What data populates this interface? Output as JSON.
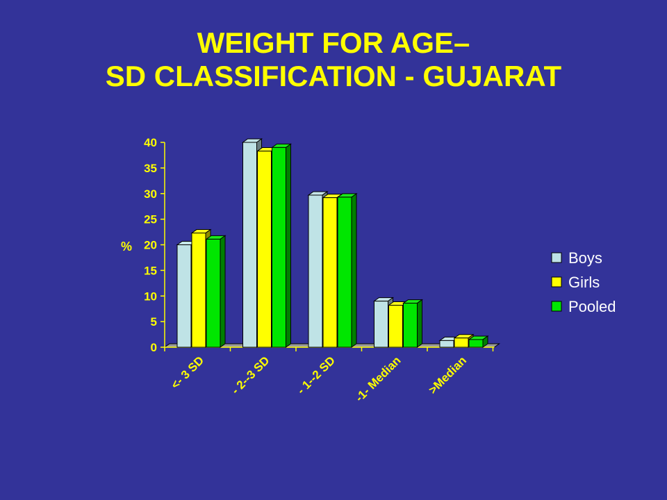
{
  "slide": {
    "title_line1": "WEIGHT FOR AGE–",
    "title_line2": "SD  CLASSIFICATION - GUJARAT"
  },
  "colors": {
    "background": "#333399",
    "title": "#ffff00",
    "Boys": "#bfe3e6",
    "Girls": "#ffff00",
    "Pooled": "#00e600"
  },
  "chart_data": {
    "type": "bar",
    "subtype": "3d-clustered",
    "ylabel": "%",
    "xlabel": "",
    "ylim": [
      0,
      40
    ],
    "yticks": [
      0,
      5,
      10,
      15,
      20,
      25,
      30,
      35,
      40
    ],
    "categories": [
      "<- 3 SD",
      "- 2--3 SD",
      "- 1--2 SD",
      "-1- Median",
      ">Median"
    ],
    "series": [
      {
        "name": "Boys",
        "values": [
          20,
          40,
          29.7,
          9,
          1.3
        ]
      },
      {
        "name": "Girls",
        "values": [
          22.3,
          38.3,
          29.2,
          8.2,
          1.8
        ]
      },
      {
        "name": "Pooled",
        "values": [
          21.1,
          39,
          29.3,
          8.6,
          1.5
        ]
      }
    ],
    "legend_position": "right",
    "grid": false
  }
}
